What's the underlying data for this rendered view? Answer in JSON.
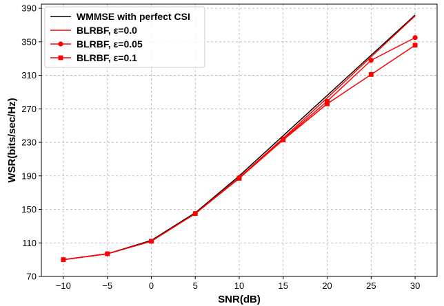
{
  "chart_data": {
    "type": "line",
    "xlabel": "SNR(dB)",
    "ylabel": "WSR(bits/sec/Hz)",
    "xlim": [
      -12.5,
      32.5
    ],
    "ylim": [
      70,
      395
    ],
    "xticks": [
      -10,
      -5,
      0,
      5,
      10,
      15,
      20,
      25,
      30
    ],
    "yticks": [
      70,
      110,
      150,
      190,
      230,
      270,
      310,
      350,
      390
    ],
    "grid": true,
    "legend_position": "top-left",
    "x": [
      -10,
      -5,
      0,
      5,
      10,
      15,
      20,
      25,
      30
    ],
    "series": [
      {
        "name": "WMMSE with perfect CSI",
        "color": "#000000",
        "marker": "none",
        "values": [
          90,
          97,
          113,
          146,
          190,
          238,
          286,
          334,
          382
        ]
      },
      {
        "name": "BLRBF, ε=0.0",
        "color": "#ff0000",
        "marker": "none",
        "values": [
          90,
          97,
          112,
          145,
          188,
          235,
          283,
          332,
          381
        ]
      },
      {
        "name": "BLRBF, ε=0.05",
        "color": "#ff0000",
        "marker": "circle",
        "values": [
          90,
          97,
          112,
          145,
          188,
          234,
          279,
          328,
          355
        ]
      },
      {
        "name": "BLRBF, ε=0.1",
        "color": "#ff0000",
        "marker": "square",
        "values": [
          90,
          97,
          112,
          145,
          187,
          233,
          276,
          311,
          346
        ]
      }
    ]
  }
}
